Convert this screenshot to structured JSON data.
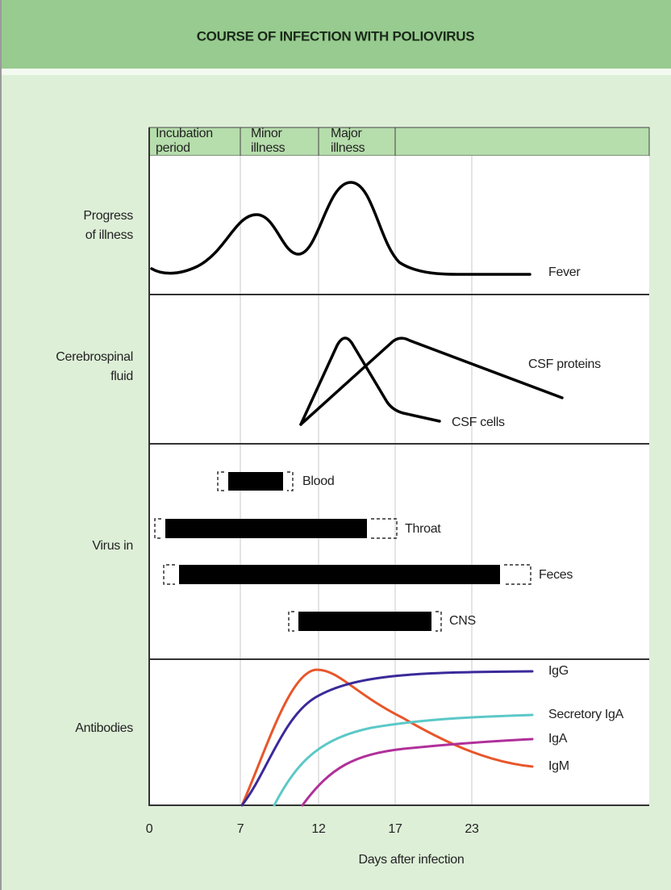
{
  "header": {
    "title": "COURSE OF INFECTION WITH POLIOVIRUS"
  },
  "phases": [
    [
      "Incubation",
      "period"
    ],
    [
      "Minor",
      "illness"
    ],
    [
      "Major",
      "illness"
    ]
  ],
  "rows": [
    [
      "Progress",
      "of illness"
    ],
    [
      "Cerebrospinal",
      "fluid"
    ],
    [
      "Virus in"
    ],
    [
      "Antibodies"
    ]
  ],
  "curve_labels": [
    "Fever",
    "CSF proteins",
    "CSF cells",
    "Blood",
    "Throat",
    "Feces",
    "CNS",
    "IgG",
    "Secretory IgA",
    "IgA",
    "IgM"
  ],
  "x_axis": {
    "ticks": [
      0,
      7,
      12,
      17,
      23
    ],
    "label": "Days after infection"
  }
}
